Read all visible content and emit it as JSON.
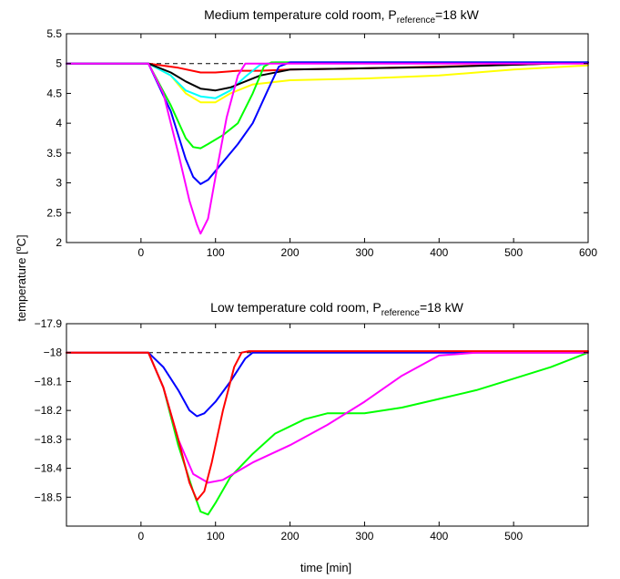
{
  "figure": {
    "ylabel": {
      "pre": "temperature [",
      "sup": "o",
      "post": "C]"
    },
    "xlabel": "time [min]"
  },
  "chart_data": [
    {
      "type": "line",
      "title": {
        "pre": "Medium temperature  cold room, P",
        "sub": "reference",
        "post": "=18 kW"
      },
      "xlim": [
        -100,
        600
      ],
      "ylim": [
        2,
        5.5
      ],
      "xticks": [
        0,
        100,
        200,
        300,
        400,
        500,
        600
      ],
      "yticks": [
        2,
        2.5,
        3,
        3.5,
        4,
        4.5,
        5,
        5.5
      ],
      "grid": false,
      "reference": {
        "y": 5.0,
        "style": "dashed",
        "color": "#000000"
      },
      "series": [
        {
          "color": "#ff0000",
          "x": [
            -100,
            10,
            50,
            80,
            100,
            130,
            160,
            200,
            300,
            400,
            500,
            600
          ],
          "y": [
            5,
            5,
            4.93,
            4.85,
            4.85,
            4.88,
            4.88,
            4.9,
            4.92,
            4.95,
            4.98,
            5.02
          ]
        },
        {
          "color": "#ffff00",
          "x": [
            -100,
            10,
            40,
            60,
            80,
            100,
            120,
            150,
            200,
            300,
            400,
            500,
            600
          ],
          "y": [
            5,
            5,
            4.8,
            4.5,
            4.35,
            4.35,
            4.5,
            4.65,
            4.72,
            4.75,
            4.8,
            4.9,
            4.97
          ]
        },
        {
          "color": "#00ffff",
          "x": [
            -100,
            10,
            40,
            60,
            80,
            100,
            120,
            140,
            160,
            180,
            200,
            600
          ],
          "y": [
            5,
            5,
            4.8,
            4.55,
            4.45,
            4.42,
            4.55,
            4.78,
            4.98,
            5.02,
            5.02,
            5.02
          ]
        },
        {
          "color": "#000000",
          "x": [
            -100,
            10,
            40,
            60,
            80,
            100,
            120,
            140,
            160,
            200,
            300,
            400,
            500,
            600
          ],
          "y": [
            5,
            5,
            4.85,
            4.7,
            4.58,
            4.55,
            4.6,
            4.7,
            4.8,
            4.9,
            4.92,
            4.94,
            4.98,
            5.02
          ]
        },
        {
          "color": "#00ff00",
          "x": [
            -100,
            10,
            40,
            60,
            70,
            80,
            90,
            110,
            130,
            150,
            165,
            175,
            200,
            600
          ],
          "y": [
            5,
            5,
            4.3,
            3.75,
            3.6,
            3.58,
            3.65,
            3.8,
            4.0,
            4.5,
            4.95,
            5.02,
            5.02,
            5.02
          ]
        },
        {
          "color": "#0000ff",
          "x": [
            -100,
            10,
            40,
            60,
            70,
            80,
            90,
            110,
            130,
            150,
            170,
            185,
            200,
            600
          ],
          "y": [
            5,
            5,
            4.2,
            3.4,
            3.1,
            2.98,
            3.05,
            3.35,
            3.65,
            4.0,
            4.55,
            4.95,
            5.02,
            5.02
          ]
        },
        {
          "color": "#ff00ff",
          "x": [
            -100,
            10,
            30,
            50,
            65,
            75,
            80,
            90,
            100,
            115,
            130,
            140,
            150,
            160,
            600
          ],
          "y": [
            5,
            5,
            4.5,
            3.5,
            2.7,
            2.3,
            2.15,
            2.4,
            3.1,
            4.1,
            4.8,
            5.0,
            5.0,
            5.0,
            5.0
          ]
        }
      ]
    },
    {
      "type": "line",
      "title": {
        "pre": "Low temperature  cold room, P",
        "sub": "reference",
        "post": "=18 kW"
      },
      "xlim": [
        -100,
        600
      ],
      "ylim": [
        -18.6,
        -17.9
      ],
      "xticks": [
        0,
        100,
        200,
        300,
        400,
        500
      ],
      "yticks": [
        -17.9,
        -18,
        -18.1,
        -18.2,
        -18.3,
        -18.4,
        -18.5
      ],
      "grid": false,
      "reference": {
        "y": -18.0,
        "style": "dashed",
        "color": "#000000"
      },
      "series": [
        {
          "color": "#0000ff",
          "x": [
            -100,
            10,
            30,
            50,
            65,
            75,
            85,
            100,
            120,
            140,
            150,
            600
          ],
          "y": [
            -18,
            -18,
            -18.05,
            -18.13,
            -18.2,
            -18.22,
            -18.21,
            -18.17,
            -18.1,
            -18.02,
            -18.0,
            -18.0
          ]
        },
        {
          "color": "#00ff00",
          "x": [
            -100,
            10,
            30,
            50,
            70,
            80,
            90,
            100,
            120,
            150,
            180,
            220,
            250,
            300,
            350,
            400,
            450,
            500,
            550,
            600
          ],
          "y": [
            -18,
            -18,
            -18.12,
            -18.32,
            -18.48,
            -18.55,
            -18.56,
            -18.52,
            -18.43,
            -18.35,
            -18.28,
            -18.23,
            -18.21,
            -18.21,
            -18.19,
            -18.16,
            -18.13,
            -18.09,
            -18.05,
            -18.0
          ]
        },
        {
          "color": "#ff00ff",
          "x": [
            -100,
            10,
            30,
            50,
            70,
            90,
            110,
            150,
            200,
            250,
            300,
            350,
            400,
            450,
            500,
            600
          ],
          "y": [
            -18,
            -18,
            -18.12,
            -18.3,
            -18.42,
            -18.45,
            -18.44,
            -18.38,
            -18.32,
            -18.25,
            -18.17,
            -18.08,
            -18.01,
            -18.0,
            -18.0,
            -18.0
          ]
        },
        {
          "color": "#ff0000",
          "x": [
            -100,
            10,
            30,
            50,
            65,
            75,
            85,
            95,
            110,
            125,
            135,
            145,
            160,
            600
          ],
          "y": [
            -18,
            -18,
            -18.12,
            -18.3,
            -18.45,
            -18.51,
            -18.48,
            -18.38,
            -18.2,
            -18.05,
            -18.0,
            -17.995,
            -17.995,
            -17.995
          ]
        }
      ]
    }
  ]
}
